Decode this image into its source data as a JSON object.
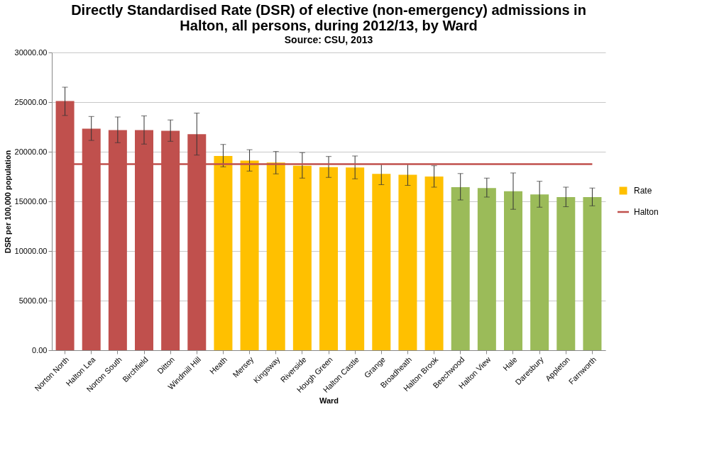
{
  "chart_data": {
    "type": "bar",
    "title": [
      "Directly Standardised Rate (DSR) of elective (non-emergency) admissions in",
      "Halton, all persons, during 2012/13, by Ward"
    ],
    "subtitle": "Source: CSU, 2013",
    "xlabel": "Ward",
    "ylabel": "DSR per 100,000 population",
    "categories": [
      "Norton North",
      "Halton Lea",
      "Norton South",
      "Birchfield",
      "Ditton",
      "Windmill Hill",
      "Heath",
      "Mersey",
      "Kingsway",
      "Riverside",
      "Hough Green",
      "Halton Castle",
      "Grange",
      "Broadheath",
      "Halton Brook",
      "Beechwood",
      "Halton View",
      "Hale",
      "Daresbury",
      "Appleton",
      "Farnworth"
    ],
    "series": [
      {
        "name": "Rate",
        "color": "#ffc000",
        "colors": [
          "#c0504d",
          "#c0504d",
          "#c0504d",
          "#c0504d",
          "#c0504d",
          "#c0504d",
          "#ffc000",
          "#ffc000",
          "#ffc000",
          "#ffc000",
          "#ffc000",
          "#ffc000",
          "#ffc000",
          "#ffc000",
          "#ffc000",
          "#9bbb59",
          "#9bbb59",
          "#9bbb59",
          "#9bbb59",
          "#9bbb59",
          "#9bbb59"
        ],
        "values": [
          25100,
          22320,
          22180,
          22180,
          22110,
          21770,
          19570,
          19110,
          18910,
          18590,
          18450,
          18410,
          17770,
          17680,
          17500,
          16430,
          16340,
          16020,
          15700,
          15430,
          15430
        ],
        "errors": [
          [
            23650,
            26500
          ],
          [
            21140,
            23550
          ],
          [
            20910,
            23500
          ],
          [
            20770,
            23610
          ],
          [
            21050,
            23200
          ],
          [
            19660,
            23890
          ],
          [
            18480,
            20730
          ],
          [
            18050,
            20200
          ],
          [
            17770,
            20020
          ],
          [
            17340,
            19910
          ],
          [
            17410,
            19520
          ],
          [
            17270,
            19570
          ],
          [
            16680,
            18750
          ],
          [
            16610,
            18750
          ],
          [
            16430,
            18590
          ],
          [
            15140,
            17800
          ],
          [
            15430,
            17340
          ],
          [
            14200,
            17860
          ],
          [
            14410,
            17020
          ],
          [
            14460,
            16430
          ],
          [
            14550,
            16340
          ]
        ]
      }
    ],
    "ref_lines": [
      {
        "axis": "y",
        "value": 18750,
        "label": "Halton",
        "color": "#c0504d"
      }
    ],
    "ylim": [
      0,
      30000
    ],
    "yticks": [
      {
        "value": 0,
        "label": "0.00"
      },
      {
        "value": 5000,
        "label": "5000.00"
      },
      {
        "value": 10000,
        "label": "10000.00"
      },
      {
        "value": 15000,
        "label": "15000.00"
      },
      {
        "value": 20000,
        "label": "20000.00"
      },
      {
        "value": 25000,
        "label": "25000.00"
      },
      {
        "value": 30000,
        "label": "30000.00"
      }
    ],
    "grid": "y",
    "legend": "right"
  }
}
